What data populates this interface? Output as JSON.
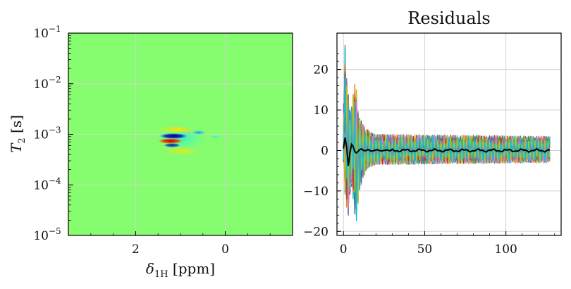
{
  "chart_data": [
    {
      "type": "heatmap",
      "title": "",
      "xlabel": "δ₁H [ppm]",
      "ylabel": "T₂ [s]",
      "xlim": [
        3.5,
        -1.5
      ],
      "x_axis_reversed": true,
      "ylim": [
        1e-05,
        0.1
      ],
      "yscale": "log",
      "grid": true,
      "x_ticks": [
        {
          "value": 2,
          "label": "2"
        },
        {
          "value": 0,
          "label": "0"
        }
      ],
      "y_ticks": [
        {
          "value": 1e-05,
          "base": "10",
          "exp": "−5"
        },
        {
          "value": 0.0001,
          "base": "10",
          "exp": "−4"
        },
        {
          "value": 0.001,
          "base": "10",
          "exp": "−3"
        },
        {
          "value": 0.01,
          "base": "10",
          "exp": "−2"
        },
        {
          "value": 0.1,
          "base": "10",
          "exp": "−1"
        }
      ],
      "colormap": "jet",
      "background_color": "#86fc6f",
      "features": [
        {
          "x": 1.25,
          "y": 0.00075,
          "polarity": "negative",
          "color": "#0a0a8a"
        },
        {
          "x": 1.15,
          "y": 0.00065,
          "polarity": "positive",
          "color": "#cc1010"
        },
        {
          "x": 1.05,
          "y": 0.0009,
          "polarity": "positive",
          "color": "#ffe000"
        },
        {
          "x": 0.55,
          "y": 0.001,
          "polarity": "negative",
          "color": "#00a0ff"
        }
      ]
    },
    {
      "type": "line",
      "title": "Residuals",
      "xlabel": "",
      "ylabel": "",
      "xlim": [
        -4,
        134
      ],
      "ylim": [
        -21,
        29
      ],
      "grid": true,
      "x_ticks": [
        0,
        50,
        100
      ],
      "y_ticks": [
        -20,
        -10,
        0,
        10,
        20
      ],
      "n_points": 128,
      "residual_series_colors": [
        "#1f77b4",
        "#ff7f0e",
        "#2ca02c",
        "#d62728",
        "#9467bd",
        "#8c564b",
        "#e377c2",
        "#7f7f7f",
        "#bcbd22",
        "#17becf"
      ],
      "mean_series": {
        "color": "#000000",
        "values": [
          0.5,
          3.2,
          0.8,
          -3.8,
          -0.5,
          1.5,
          1.0,
          -0.3,
          -0.6,
          -0.2,
          0.2,
          0.4,
          0.1,
          -0.1,
          0.0,
          0.2,
          0.1,
          -0.2,
          -0.1,
          0.0,
          0.1,
          0.2,
          0.0,
          -0.1,
          -0.1,
          0.0,
          0.1,
          0.1,
          0.0,
          -0.1
        ]
      },
      "residual_envelope": [
        {
          "x": 0,
          "lo": -3,
          "hi": 12
        },
        {
          "x": 1,
          "lo": -12,
          "hi": 26
        },
        {
          "x": 2,
          "lo": -14,
          "hi": 18
        },
        {
          "x": 3,
          "lo": -16,
          "hi": 14
        },
        {
          "x": 4,
          "lo": -11,
          "hi": 10
        },
        {
          "x": 5,
          "lo": -9,
          "hi": 11
        },
        {
          "x": 6,
          "lo": -12,
          "hi": 14
        },
        {
          "x": 7,
          "lo": -17,
          "hi": 17
        },
        {
          "x": 8,
          "lo": -18,
          "hi": 15
        },
        {
          "x": 9,
          "lo": -14,
          "hi": 10
        },
        {
          "x": 10,
          "lo": -10,
          "hi": 8
        },
        {
          "x": 12,
          "lo": -7,
          "hi": 7
        },
        {
          "x": 14,
          "lo": -5,
          "hi": 5.5
        },
        {
          "x": 17,
          "lo": -4,
          "hi": 4.5
        },
        {
          "x": 20,
          "lo": -3.5,
          "hi": 4
        },
        {
          "x": 128,
          "lo": -3,
          "hi": 3.5
        }
      ]
    }
  ]
}
